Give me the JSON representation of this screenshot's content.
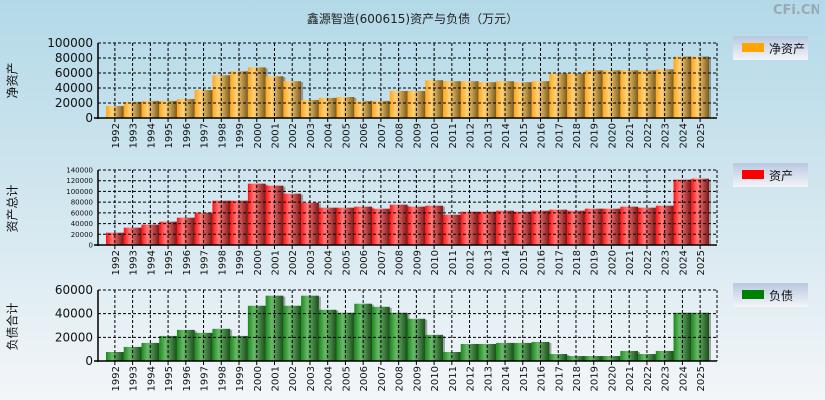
{
  "title": "鑫源智造(600615)资产与负债（万元）",
  "watermark": "CFi.CN",
  "chart_data": [
    {
      "type": "bar",
      "ylabel": "净资产",
      "legend": "净资产",
      "color": "#ffa500",
      "ylim": [
        0,
        100000
      ],
      "yticks": [
        0,
        20000,
        40000,
        60000,
        80000,
        100000
      ],
      "categories": [
        "1992",
        "1993",
        "1994",
        "1995",
        "1996",
        "1997",
        "1998",
        "1999",
        "2000",
        "2001",
        "2002",
        "2003",
        "2004",
        "2005",
        "2006",
        "2007",
        "2008",
        "2009",
        "2010",
        "2011",
        "2012",
        "2013",
        "2014",
        "2015",
        "2016",
        "2017",
        "2018",
        "2019",
        "2020",
        "2021",
        "2022",
        "2023",
        "2024",
        "2025"
      ],
      "values": [
        16000,
        21500,
        22800,
        22800,
        25400,
        37300,
        57000,
        62300,
        67500,
        55700,
        49100,
        24100,
        26800,
        28000,
        22800,
        22800,
        36000,
        36000,
        50400,
        49100,
        49100,
        47800,
        49100,
        47800,
        49100,
        59600,
        59600,
        63600,
        63600,
        63600,
        63600,
        64900,
        82000,
        82000
      ]
    },
    {
      "type": "bar",
      "ylabel": "资产总计",
      "legend": "资产",
      "color": "#ff0000",
      "ylim": [
        0,
        140000
      ],
      "yticks": [
        0,
        20000,
        40000,
        60000,
        80000,
        100000,
        120000,
        140000
      ],
      "categories": [
        "1992",
        "1993",
        "1994",
        "1995",
        "1996",
        "1997",
        "1998",
        "1999",
        "2000",
        "2001",
        "2002",
        "2003",
        "2004",
        "2005",
        "2006",
        "2007",
        "2008",
        "2009",
        "2010",
        "2011",
        "2012",
        "2013",
        "2014",
        "2015",
        "2016",
        "2017",
        "2018",
        "2019",
        "2020",
        "2021",
        "2022",
        "2023",
        "2024",
        "2025"
      ],
      "values": [
        23000,
        32400,
        38000,
        43600,
        51000,
        60400,
        82800,
        82800,
        114500,
        110800,
        95800,
        79000,
        69700,
        69700,
        71600,
        67800,
        75300,
        71600,
        73400,
        56600,
        62200,
        62200,
        64100,
        62200,
        64100,
        66000,
        64100,
        67800,
        67800,
        71600,
        69700,
        73400,
        122000,
        123800
      ]
    },
    {
      "type": "bar",
      "ylabel": "负债合计",
      "legend": "负债",
      "color": "#008000",
      "ylim": [
        0,
        60000
      ],
      "yticks": [
        0,
        20000,
        40000,
        60000
      ],
      "categories": [
        "1992",
        "1993",
        "1994",
        "1995",
        "1996",
        "1997",
        "1998",
        "1999",
        "2000",
        "2001",
        "2002",
        "2003",
        "2004",
        "2005",
        "2006",
        "2007",
        "2008",
        "2009",
        "2010",
        "2011",
        "2012",
        "2013",
        "2014",
        "2015",
        "2016",
        "2017",
        "2018",
        "2019",
        "2020",
        "2021",
        "2022",
        "2023",
        "2024",
        "2025"
      ],
      "values": [
        7600,
        11900,
        15300,
        21200,
        26300,
        23800,
        27200,
        21200,
        46700,
        55200,
        46700,
        55200,
        43300,
        40800,
        48400,
        45800,
        40800,
        35700,
        22100,
        7600,
        14400,
        14400,
        15300,
        15300,
        16100,
        5900,
        4200,
        4200,
        4200,
        8500,
        5900,
        8500,
        40800,
        40800
      ]
    }
  ]
}
